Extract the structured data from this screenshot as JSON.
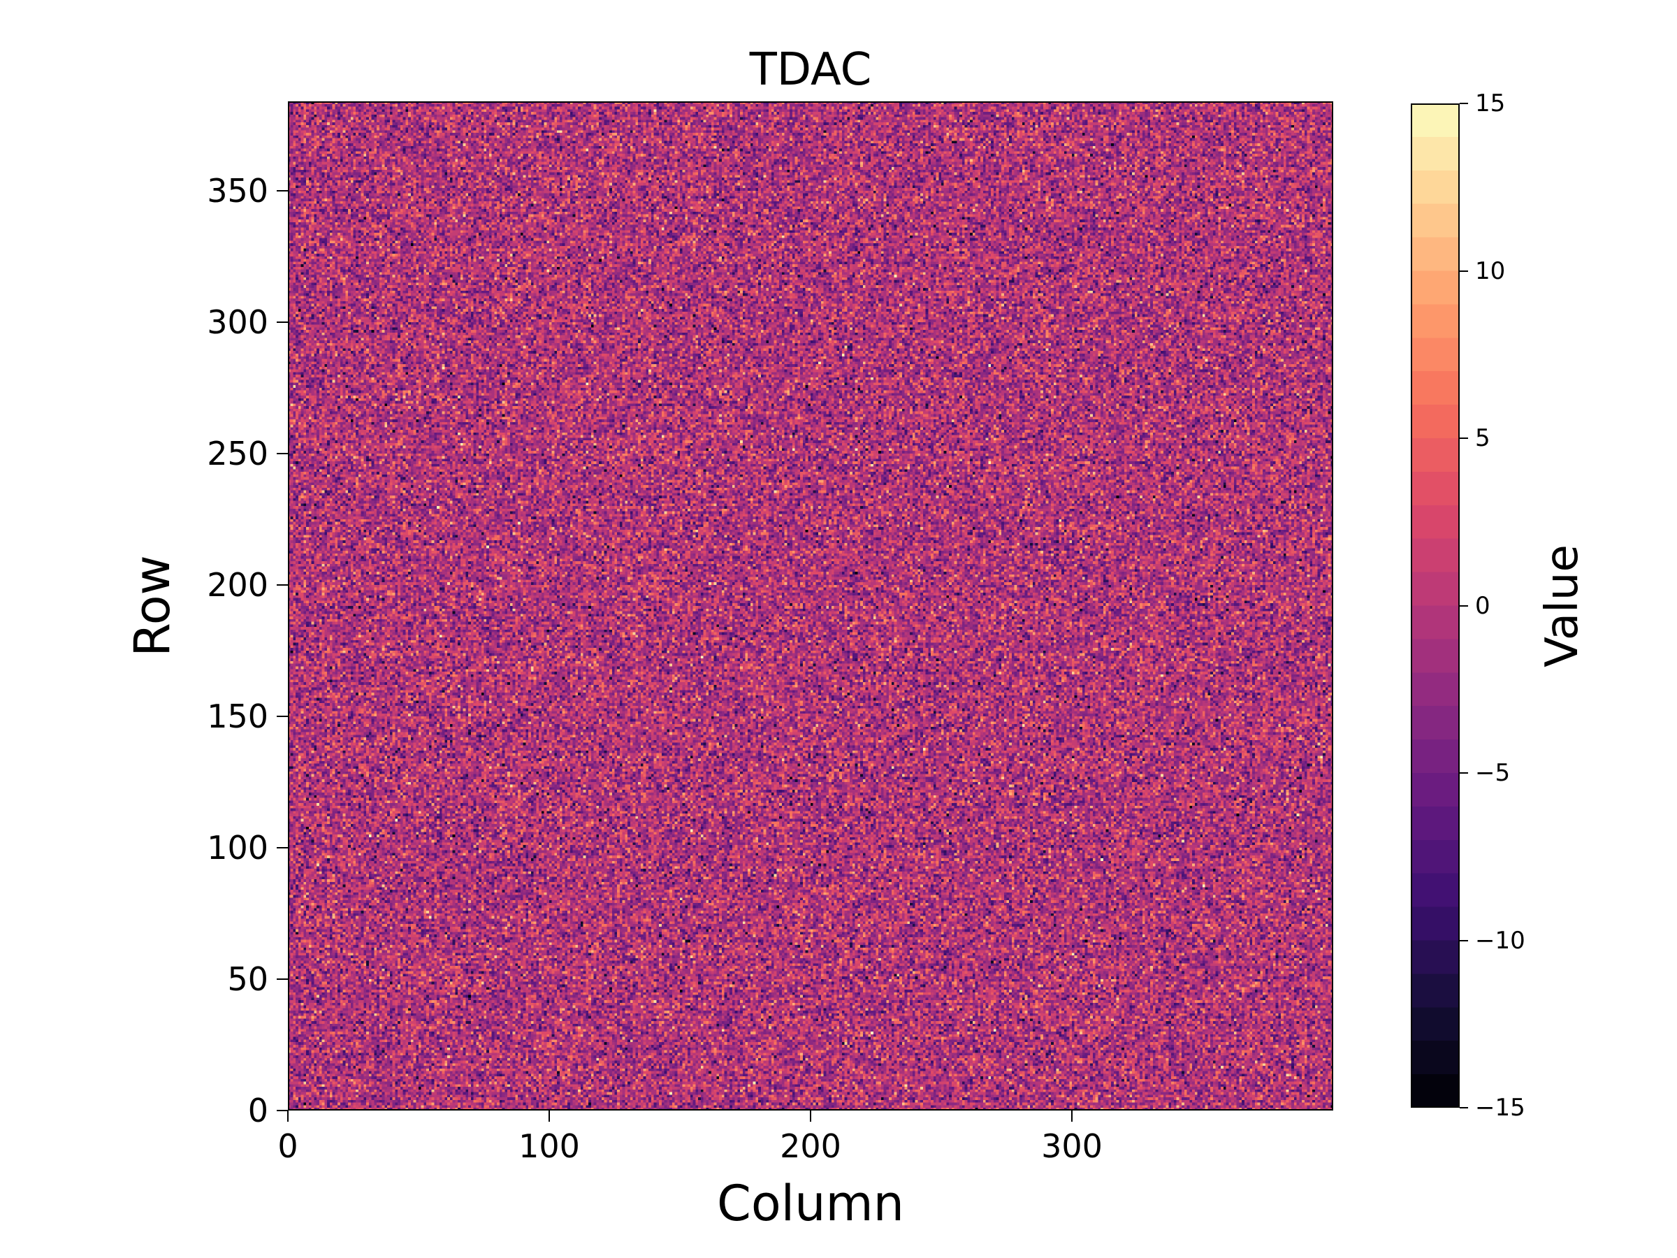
{
  "figure": {
    "background_color": "#ffffff",
    "text_color": "#000000"
  },
  "chart_data": {
    "type": "heatmap",
    "title": "TDAC",
    "xlabel": "Column",
    "ylabel": "Row",
    "colorbar_label": "Value",
    "grid_columns": 400,
    "grid_rows": 384,
    "xlim": [
      0,
      400
    ],
    "ylim": [
      0,
      384
    ],
    "x_ticks": [
      0,
      100,
      200,
      300
    ],
    "y_ticks": [
      0,
      50,
      100,
      150,
      200,
      250,
      300,
      350
    ],
    "colorbar_ticks": [
      15,
      10,
      5,
      0,
      -5,
      -10,
      -15
    ],
    "vmin": -15,
    "vmax": 15,
    "colorbar_segments": 30,
    "colormap": "magma",
    "colormap_stops": [
      "#000004",
      "#140e36",
      "#3b0f70",
      "#641a80",
      "#8c2981",
      "#b73779",
      "#de4968",
      "#f7705c",
      "#fe9f6d",
      "#fecf92",
      "#fcfdbf"
    ],
    "data_distribution": {
      "kind": "gaussian_integer_noise",
      "mean": -0.5,
      "std": 4,
      "clip": [
        -15,
        15
      ],
      "seed": 42
    }
  }
}
